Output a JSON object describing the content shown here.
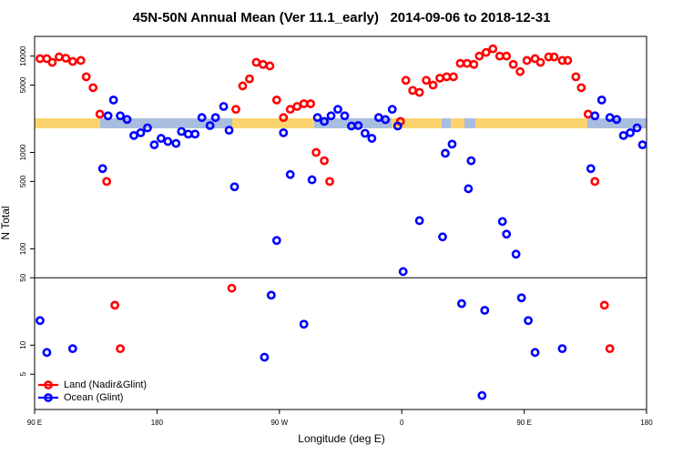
{
  "chart_data": {
    "type": "scatter",
    "title": "45N-50N Annual Mean (Ver 11.1_early)   2014-09-06 to 2018-12-31",
    "x_label": "Longitude (deg E)",
    "y_label": "N Total",
    "log_y": true,
    "legend": "bottom-left",
    "reference_line": 50,
    "xlim": [
      90,
      540
    ],
    "xticks": [
      {
        "value": 90,
        "label": "90 E"
      },
      180,
      {
        "value": 270,
        "label": "90 W"
      },
      {
        "value": 360,
        "label": "0"
      },
      {
        "value": 450,
        "label": "90 E"
      },
      {
        "value": 540,
        "label": "180"
      }
    ],
    "ylim": [
      2.15,
      16000
    ],
    "yticks": [
      5,
      10,
      50,
      100,
      500,
      1000,
      5000,
      10000
    ],
    "series": [
      {
        "name": "Land (Nadir&Glint)",
        "color": "#ff0000",
        "x": [
          94,
          99,
          103,
          108,
          113,
          118,
          124,
          128,
          133,
          138,
          143,
          149,
          153,
          235,
          238,
          243,
          248,
          253,
          258,
          263,
          268,
          273,
          278,
          283,
          288,
          293,
          297,
          303,
          307,
          359,
          363,
          368,
          373,
          378,
          383,
          388,
          393,
          398,
          403,
          408,
          413,
          417,
          422,
          427,
          432,
          437,
          442,
          447,
          452,
          458,
          462,
          468,
          472,
          478,
          482,
          488,
          492,
          497,
          502,
          509,
          513
        ],
        "values": [
          9400,
          9400,
          8600,
          9800,
          9500,
          8800,
          9000,
          6100,
          4700,
          2500,
          500,
          26,
          9.2,
          39,
          2800,
          4900,
          5800,
          8600,
          8200,
          7900,
          3500,
          2300,
          2800,
          3000,
          3200,
          3200,
          1000,
          820,
          500,
          2100,
          5600,
          4400,
          4200,
          5600,
          5000,
          5900,
          6100,
          6100,
          8400,
          8400,
          8200,
          10000,
          10900,
          11900,
          10000,
          10000,
          8200,
          6900,
          9000,
          9400,
          8600,
          9800,
          9800,
          9000,
          9000,
          6100,
          4700,
          2500,
          500,
          26,
          9.2
        ]
      },
      {
        "name": "Ocean (Glint)",
        "color": "#0000ff",
        "x": [
          94,
          99,
          118,
          140,
          144,
          148,
          153,
          158,
          163,
          168,
          173,
          178,
          183,
          188,
          194,
          198,
          203,
          208,
          213,
          219,
          223,
          229,
          233,
          237,
          259,
          264,
          268,
          273,
          278,
          288,
          294,
          298,
          303,
          308,
          313,
          318,
          323,
          328,
          333,
          338,
          343,
          348,
          353,
          357,
          361,
          373,
          390,
          392,
          397,
          404,
          409,
          411,
          419,
          421,
          434,
          437,
          444,
          448,
          453,
          458,
          478,
          499,
          502,
          507,
          513,
          518,
          523,
          528,
          533,
          537
        ],
        "values": [
          18,
          8.4,
          9.2,
          680,
          2400,
          3500,
          2400,
          2200,
          1500,
          1600,
          1800,
          1200,
          1400,
          1300,
          1240,
          1650,
          1550,
          1550,
          2300,
          1900,
          2300,
          3000,
          1700,
          440,
          7.5,
          33,
          122,
          1600,
          590,
          16.5,
          520,
          2300,
          2100,
          2400,
          2800,
          2400,
          1880,
          1900,
          1580,
          1400,
          2300,
          2190,
          2800,
          1880,
          58,
          196,
          133,
          980,
          1220,
          27,
          420,
          820,
          3.0,
          23,
          192,
          142,
          88,
          31,
          18,
          8.4,
          9.2,
          680,
          2400,
          3500,
          2300,
          2200,
          1500,
          1600,
          1800,
          1200
        ]
      }
    ]
  }
}
